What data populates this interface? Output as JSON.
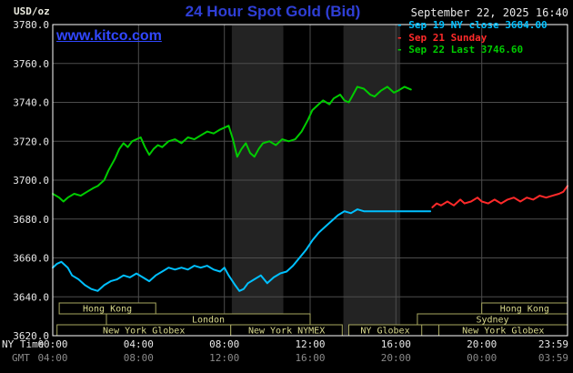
{
  "header": {
    "unit": "USD/oz",
    "title": "24 Hour Spot Gold (Bid)",
    "datetime": "September 22, 2025 16:40",
    "watermark": "www.kitco.com"
  },
  "axes_corner": {
    "ny_time": "NY Time",
    "gmt": "GMT"
  },
  "legend": {
    "items": [
      {
        "bullet": "-",
        "label": "Sep 19 NY close 3684.00",
        "color": "#00c0ff"
      },
      {
        "bullet": "-",
        "label": "Sep 21 Sunday",
        "color": "#ff2a2a"
      },
      {
        "bullet": "-",
        "label": "Sep 22 Last 3746.60",
        "color": "#00cc00"
      }
    ]
  },
  "colors": {
    "background": "#000000",
    "plot_border": "#ffffff",
    "grid": "#4d4d4d",
    "band": "#232323",
    "title": "#2f3fd6",
    "watermark": "#3147ff",
    "axis_text": "#e8e8e8",
    "gmt_text": "#8a8a8a",
    "session_box": "#a8a860",
    "session_text": "#d9d98c"
  },
  "chart_data": {
    "type": "line",
    "title": "24 Hour Spot Gold (Bid)",
    "ylabel": "USD/oz",
    "grid": true,
    "x_axis": {
      "range_hours": [
        0,
        24
      ],
      "ticks_hours": [
        0,
        4,
        8,
        12,
        16,
        20,
        24
      ],
      "tick_labels_ny": [
        "00:00",
        "04:00",
        "08:00",
        "12:00",
        "16:00",
        "20:00",
        "23:59"
      ],
      "tick_labels_gmt": [
        "04:00",
        "08:00",
        "12:00",
        "16:00",
        "20:00",
        "00:00",
        "03:59"
      ]
    },
    "y_axis": {
      "min": 3620,
      "max": 3780,
      "step": 20,
      "tick_labels": [
        "3780.0",
        "3760.0",
        "3740.0",
        "3720.0",
        "3700.0",
        "3680.0",
        "3660.0",
        "3640.0",
        "3620.0"
      ]
    },
    "bands": [
      {
        "start": 8.35,
        "end": 10.75
      },
      {
        "start": 13.55,
        "end": 16.2
      }
    ],
    "series": [
      {
        "id": "sep19",
        "name": "Sep 19 NY close 3684.00",
        "color": "#00c0ff",
        "points": [
          [
            0,
            3655
          ],
          [
            0.2,
            3657
          ],
          [
            0.4,
            3658
          ],
          [
            0.7,
            3655
          ],
          [
            0.9,
            3651
          ],
          [
            1.2,
            3649
          ],
          [
            1.5,
            3646
          ],
          [
            1.8,
            3644
          ],
          [
            2.1,
            3643
          ],
          [
            2.4,
            3646
          ],
          [
            2.7,
            3648
          ],
          [
            3,
            3649
          ],
          [
            3.3,
            3651
          ],
          [
            3.6,
            3650
          ],
          [
            3.9,
            3652
          ],
          [
            4.2,
            3650
          ],
          [
            4.5,
            3648
          ],
          [
            4.8,
            3651
          ],
          [
            5.1,
            3653
          ],
          [
            5.4,
            3655
          ],
          [
            5.7,
            3654
          ],
          [
            6,
            3655
          ],
          [
            6.3,
            3654
          ],
          [
            6.6,
            3656
          ],
          [
            6.9,
            3655
          ],
          [
            7.2,
            3656
          ],
          [
            7.5,
            3654
          ],
          [
            7.8,
            3653
          ],
          [
            8,
            3655
          ],
          [
            8.2,
            3651
          ],
          [
            8.5,
            3646
          ],
          [
            8.7,
            3643
          ],
          [
            8.9,
            3644
          ],
          [
            9.1,
            3647
          ],
          [
            9.4,
            3649
          ],
          [
            9.7,
            3651
          ],
          [
            10,
            3647
          ],
          [
            10.3,
            3650
          ],
          [
            10.6,
            3652
          ],
          [
            10.9,
            3653
          ],
          [
            11.2,
            3656
          ],
          [
            11.5,
            3660
          ],
          [
            11.8,
            3664
          ],
          [
            12.1,
            3669
          ],
          [
            12.4,
            3673
          ],
          [
            12.7,
            3676
          ],
          [
            13,
            3679
          ],
          [
            13.3,
            3682
          ],
          [
            13.6,
            3684
          ],
          [
            13.9,
            3683
          ],
          [
            14.2,
            3685
          ],
          [
            14.5,
            3684
          ],
          [
            14.8,
            3684
          ],
          [
            15.2,
            3684
          ],
          [
            15.6,
            3684
          ],
          [
            16,
            3684
          ],
          [
            16.4,
            3684
          ],
          [
            16.8,
            3684
          ],
          [
            17.2,
            3684
          ],
          [
            17.6,
            3684
          ]
        ]
      },
      {
        "id": "sep21",
        "name": "Sep 21 Sunday",
        "color": "#ff2a2a",
        "points": [
          [
            17.7,
            3686
          ],
          [
            17.9,
            3688
          ],
          [
            18.1,
            3687
          ],
          [
            18.4,
            3689
          ],
          [
            18.7,
            3687
          ],
          [
            19,
            3690
          ],
          [
            19.2,
            3688
          ],
          [
            19.5,
            3689
          ],
          [
            19.8,
            3691
          ],
          [
            20,
            3689
          ],
          [
            20.3,
            3688
          ],
          [
            20.6,
            3690
          ],
          [
            20.9,
            3688
          ],
          [
            21.2,
            3690
          ],
          [
            21.5,
            3691
          ],
          [
            21.8,
            3689
          ],
          [
            22.1,
            3691
          ],
          [
            22.4,
            3690
          ],
          [
            22.7,
            3692
          ],
          [
            23,
            3691
          ],
          [
            23.3,
            3692
          ],
          [
            23.6,
            3693
          ],
          [
            23.8,
            3694
          ],
          [
            24,
            3697
          ]
        ]
      },
      {
        "id": "sep22",
        "name": "Sep 22 Last 3746.60",
        "color": "#00cc00",
        "points": [
          [
            0,
            3693
          ],
          [
            0.3,
            3691
          ],
          [
            0.5,
            3689
          ],
          [
            0.7,
            3691
          ],
          [
            1,
            3693
          ],
          [
            1.3,
            3692
          ],
          [
            1.6,
            3694
          ],
          [
            1.9,
            3696
          ],
          [
            2.1,
            3697
          ],
          [
            2.4,
            3700
          ],
          [
            2.6,
            3705
          ],
          [
            2.9,
            3711
          ],
          [
            3.1,
            3716
          ],
          [
            3.3,
            3719
          ],
          [
            3.5,
            3717
          ],
          [
            3.7,
            3720
          ],
          [
            3.9,
            3721
          ],
          [
            4.1,
            3722
          ],
          [
            4.3,
            3717
          ],
          [
            4.5,
            3713
          ],
          [
            4.7,
            3716
          ],
          [
            4.9,
            3718
          ],
          [
            5.1,
            3717
          ],
          [
            5.4,
            3720
          ],
          [
            5.7,
            3721
          ],
          [
            6,
            3719
          ],
          [
            6.3,
            3722
          ],
          [
            6.6,
            3721
          ],
          [
            6.9,
            3723
          ],
          [
            7.2,
            3725
          ],
          [
            7.5,
            3724
          ],
          [
            7.8,
            3726
          ],
          [
            8,
            3727
          ],
          [
            8.2,
            3728
          ],
          [
            8.4,
            3721
          ],
          [
            8.6,
            3712
          ],
          [
            8.8,
            3716
          ],
          [
            9,
            3719
          ],
          [
            9.2,
            3714
          ],
          [
            9.4,
            3712
          ],
          [
            9.6,
            3716
          ],
          [
            9.8,
            3719
          ],
          [
            10.1,
            3720
          ],
          [
            10.4,
            3718
          ],
          [
            10.7,
            3721
          ],
          [
            11,
            3720
          ],
          [
            11.3,
            3721
          ],
          [
            11.6,
            3725
          ],
          [
            11.9,
            3731
          ],
          [
            12.1,
            3736
          ],
          [
            12.4,
            3739
          ],
          [
            12.6,
            3741
          ],
          [
            12.9,
            3739
          ],
          [
            13.1,
            3742
          ],
          [
            13.4,
            3744
          ],
          [
            13.6,
            3741
          ],
          [
            13.8,
            3740
          ],
          [
            14,
            3744
          ],
          [
            14.2,
            3748
          ],
          [
            14.5,
            3747
          ],
          [
            14.8,
            3744
          ],
          [
            15,
            3743
          ],
          [
            15.3,
            3746
          ],
          [
            15.6,
            3748
          ],
          [
            15.9,
            3745
          ],
          [
            16.1,
            3746
          ],
          [
            16.4,
            3748
          ],
          [
            16.7,
            3746.6
          ]
        ]
      }
    ],
    "sessions": [
      {
        "row": 0,
        "label": "Hong Kong",
        "start": 0.3,
        "end": 4.8
      },
      {
        "row": 0,
        "label": "Hong Kong",
        "start": 20.0,
        "end": 24.0
      },
      {
        "row": 1,
        "label": "London",
        "start": 2.5,
        "end": 12.0
      },
      {
        "row": 1,
        "label": "Sydney",
        "start": 17.0,
        "end": 24.0
      },
      {
        "row": 2,
        "label": "New York Globex",
        "start": 0.2,
        "end": 8.3
      },
      {
        "row": 2,
        "label": "New York NYMEX",
        "start": 8.3,
        "end": 13.5
      },
      {
        "row": 2,
        "label": "NY Globex",
        "start": 13.8,
        "end": 17.2
      },
      {
        "row": 2,
        "label": "New York Globex",
        "start": 18.0,
        "end": 24.0
      }
    ]
  }
}
